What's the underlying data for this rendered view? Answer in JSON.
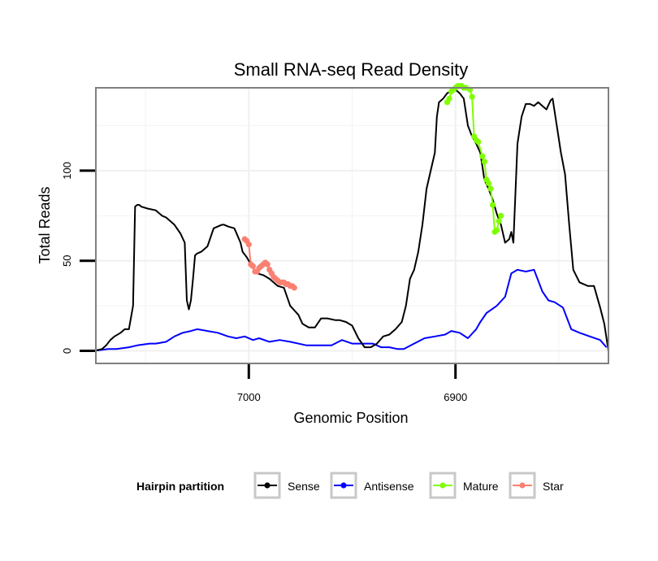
{
  "chart_data": {
    "type": "line",
    "title": "Small RNA-seq Read Density",
    "xlabel": "Genomic Position",
    "ylabel": "Total Reads",
    "x_reversed": true,
    "xlim": [
      7074,
      6826
    ],
    "ylim": [
      -7,
      146
    ],
    "x_ticks": [
      7000,
      6900
    ],
    "x_tick_labels": [
      "7000",
      "6900"
    ],
    "x_minor_grid": [
      7050,
      6950,
      6850
    ],
    "y_ticks": [
      0,
      50,
      100
    ],
    "y_tick_labels": [
      "0",
      "50",
      "100"
    ],
    "y_minor_grid": [
      25,
      75,
      125
    ],
    "legend": {
      "title": "Hairpin partition",
      "position": "bottom",
      "entries": [
        {
          "label": "Sense",
          "color": "#000000"
        },
        {
          "label": "Antisense",
          "color": "#0000ff"
        },
        {
          "label": "Mature",
          "color": "#7fff00"
        },
        {
          "label": "Star",
          "color": "#fa8072"
        }
      ]
    },
    "series": [
      {
        "name": "Sense",
        "color": "#000000",
        "style": "line",
        "x": [
          7075,
          7071,
          7069,
          7067,
          7065,
          7062,
          7060,
          7058,
          7056,
          7055,
          7054,
          7053,
          7052,
          7049,
          7045,
          7043,
          7042,
          7040,
          7036,
          7033,
          7031,
          7030,
          7029,
          7028,
          7027,
          7026,
          7025,
          7023,
          7020,
          7017,
          7015,
          7013,
          7012,
          7010,
          7007,
          7004,
          7003,
          7001,
          6999,
          6996,
          6993,
          6990,
          6986,
          6983,
          6980,
          6976,
          6974,
          6971,
          6968,
          6965,
          6962,
          6958,
          6956,
          6953,
          6950,
          6947,
          6944,
          6941,
          6938,
          6935,
          6932,
          6929,
          6926,
          6924,
          6922,
          6920,
          6918,
          6916,
          6914,
          6912,
          6910,
          6909,
          6908,
          6906,
          6904,
          6902,
          6900,
          6898,
          6896,
          6894,
          6892,
          6890,
          6888,
          6886,
          6884,
          6882,
          6880,
          6878,
          6876,
          6874,
          6873,
          6872,
          6870,
          6868,
          6866,
          6864,
          6862,
          6860,
          6858,
          6856,
          6854,
          6853,
          6851,
          6849,
          6847,
          6845,
          6843,
          6840,
          6836,
          6833,
          6830,
          6828,
          6826
        ],
        "y": [
          0,
          1,
          3,
          6,
          8,
          10,
          12,
          12,
          25,
          80,
          81,
          81,
          80,
          79,
          78,
          76,
          75,
          74,
          70,
          65,
          60,
          28,
          23,
          28,
          40,
          53,
          54,
          55,
          58,
          68,
          69,
          70,
          70,
          69,
          68,
          60,
          55,
          52,
          48,
          43,
          42,
          40,
          36,
          35,
          25,
          20,
          15,
          13,
          13,
          18,
          18,
          17,
          17,
          16,
          14,
          7,
          2,
          2,
          4,
          8,
          9,
          12,
          16,
          25,
          40,
          45,
          55,
          70,
          90,
          100,
          110,
          130,
          138,
          140,
          143,
          144,
          145,
          143,
          140,
          125,
          119,
          115,
          110,
          95,
          90,
          84,
          76,
          70,
          60,
          62,
          66,
          60,
          115,
          130,
          137,
          137,
          136,
          138,
          136,
          134,
          139,
          140,
          125,
          110,
          98,
          70,
          45,
          38,
          36,
          36,
          24,
          15,
          0
        ]
      },
      {
        "name": "Antisense",
        "color": "#0000ff",
        "style": "line",
        "x": [
          7075,
          7068,
          7064,
          7058,
          7054,
          7048,
          7045,
          7040,
          7036,
          7032,
          7028,
          7025,
          7020,
          7015,
          7010,
          7006,
          7002,
          6998,
          6995,
          6990,
          6985,
          6980,
          6972,
          6966,
          6960,
          6955,
          6950,
          6945,
          6940,
          6936,
          6932,
          6928,
          6925,
          6920,
          6915,
          6910,
          6905,
          6902,
          6898,
          6894,
          6890,
          6888,
          6885,
          6880,
          6876,
          6873,
          6870,
          6866,
          6862,
          6858,
          6855,
          6852,
          6848,
          6844,
          6840,
          6835,
          6830,
          6827
        ],
        "y": [
          0,
          1,
          1,
          2,
          3,
          4,
          4,
          5,
          8,
          10,
          11,
          12,
          11,
          10,
          8,
          7,
          8,
          6,
          7,
          5,
          6,
          5,
          3,
          3,
          3,
          6,
          4,
          4,
          4,
          2,
          2,
          1,
          1,
          4,
          7,
          8,
          9,
          11,
          10,
          7,
          12,
          16,
          21,
          25,
          30,
          43,
          45,
          44,
          45,
          33,
          28,
          27,
          24,
          12,
          10,
          8,
          6,
          2
        ]
      },
      {
        "name": "Mature",
        "color": "#7fff00",
        "style": "points",
        "x": [
          6904,
          6903,
          6902,
          6901,
          6900,
          6899,
          6898,
          6897,
          6896,
          6895,
          6893,
          6892,
          6891,
          6890,
          6889,
          6887,
          6886,
          6885,
          6884,
          6883,
          6882,
          6881,
          6880,
          6879,
          6878
        ],
        "y": [
          138,
          140,
          144,
          145,
          146,
          147,
          147,
          147,
          146,
          146,
          145,
          141,
          119,
          117,
          116,
          108,
          105,
          95,
          93,
          90,
          81,
          66,
          67,
          72,
          75
        ]
      },
      {
        "name": "Star",
        "color": "#fa8072",
        "style": "points",
        "x": [
          7002,
          7001,
          7000,
          6999,
          6998,
          6997,
          6996,
          6995,
          6994,
          6993,
          6992,
          6991,
          6990,
          6989,
          6988,
          6987,
          6986,
          6985,
          6984,
          6983,
          6982,
          6981,
          6980,
          6979,
          6978
        ],
        "y": [
          62,
          61,
          59,
          48,
          47,
          44,
          44,
          46,
          47,
          48,
          49,
          48,
          45,
          43,
          41,
          40,
          39,
          38,
          38,
          38,
          37,
          37,
          36,
          36,
          35
        ]
      }
    ]
  }
}
